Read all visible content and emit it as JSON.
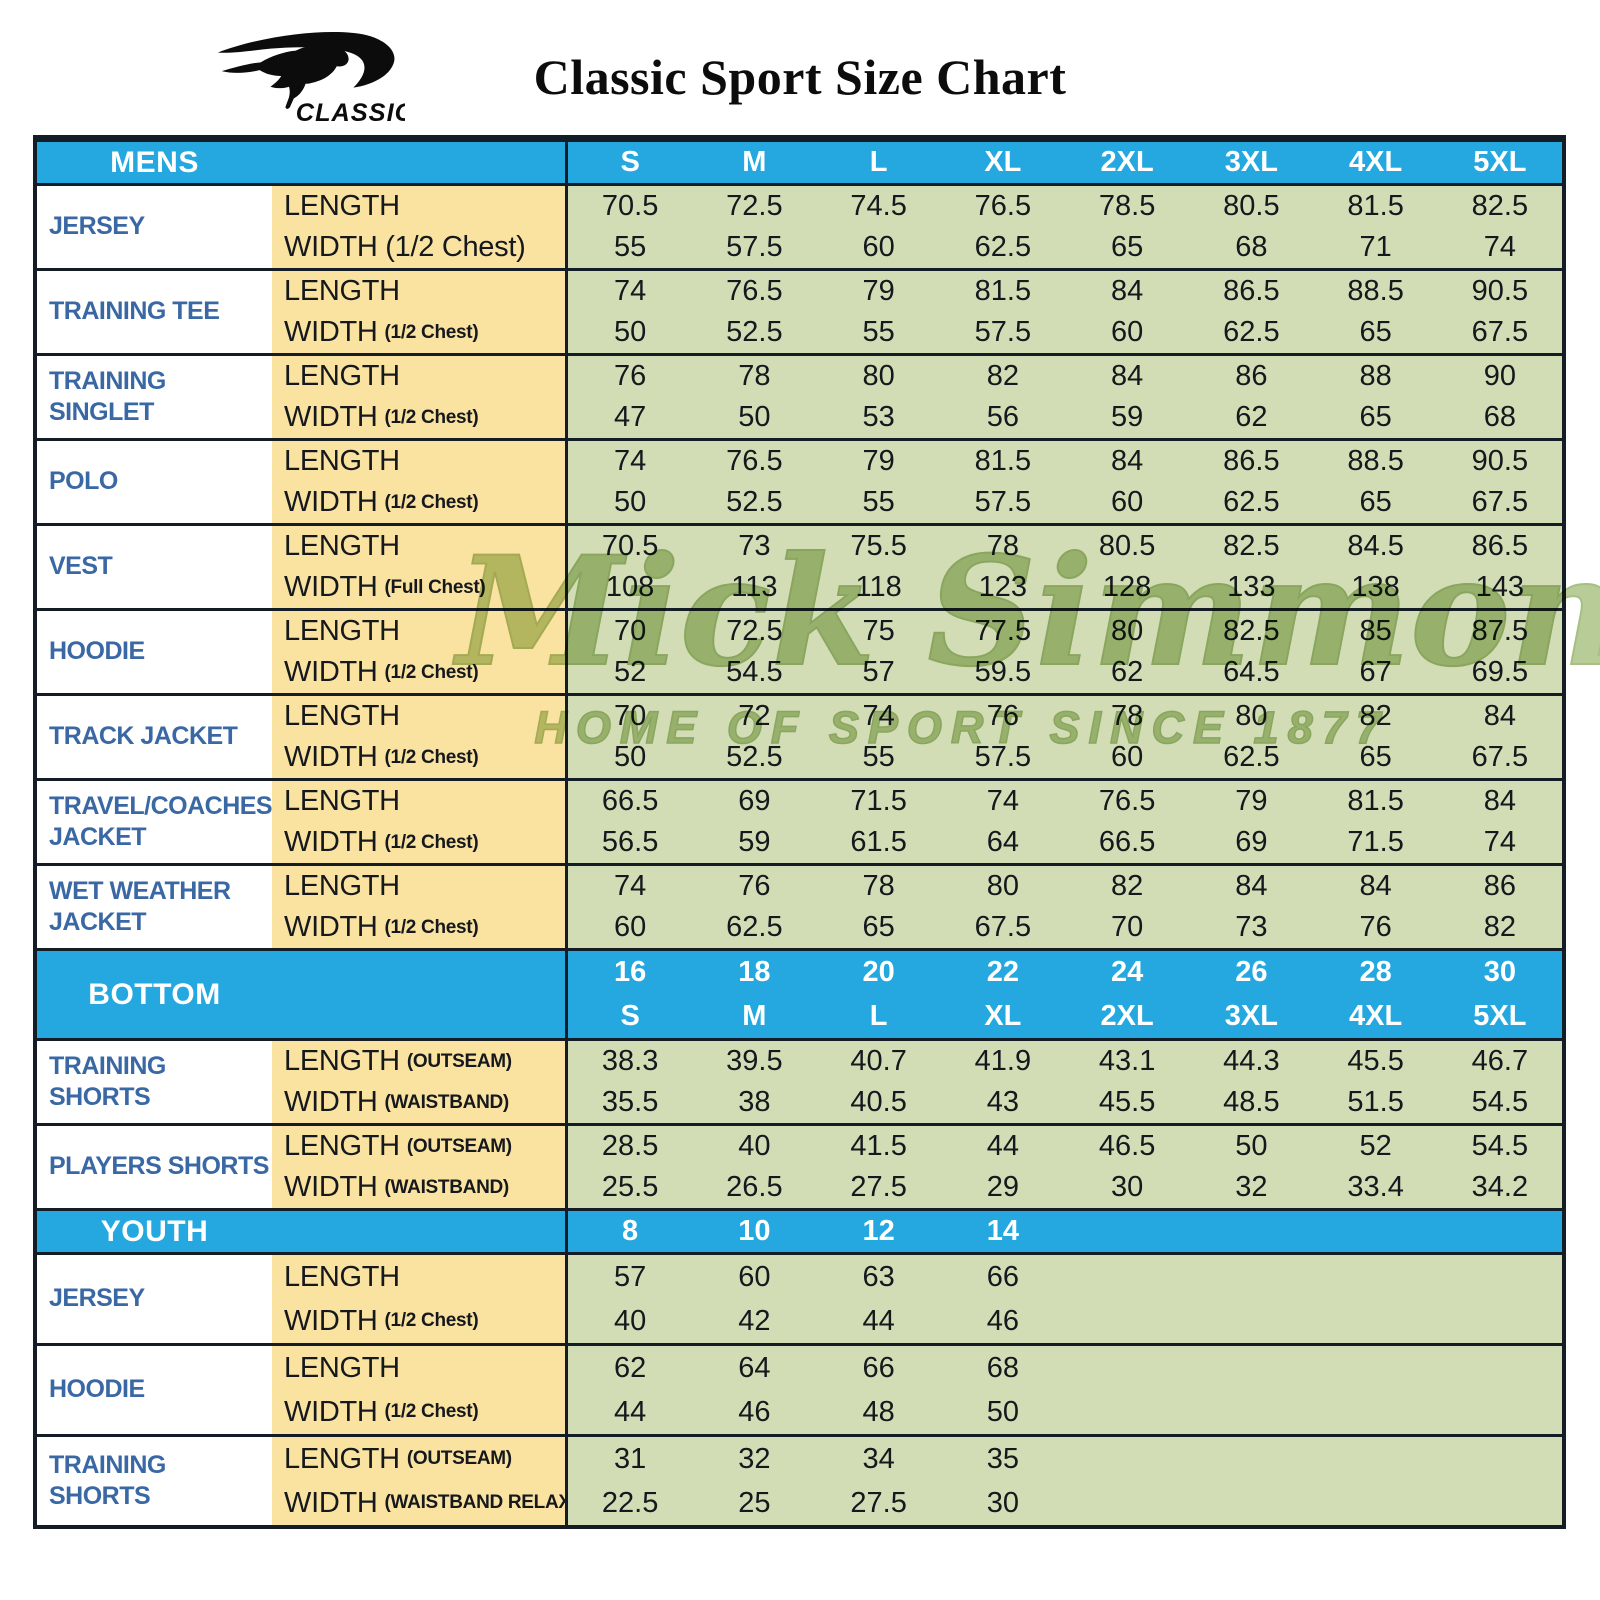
{
  "brand": {
    "logo_text": "CLASSIC"
  },
  "title": "Classic Sport Size Chart",
  "watermark": {
    "script": "Mick Simmons",
    "reg": "®",
    "tagline": "HOME OF SPORT SINCE 1877"
  },
  "colors": {
    "header_bg": "#25A8E0",
    "label_text": "#3A68A4",
    "measure_bg": "#FAE3A0",
    "data_bg": "#D2DDB6",
    "border": "#141C26",
    "watermark_fill": "#AFC78C",
    "watermark_stroke": "#9CB876"
  },
  "sections": [
    {
      "kind": "sizes-header",
      "label": "MENS",
      "sizes": [
        "S",
        "M",
        "L",
        "XL",
        "2XL",
        "3XL",
        "4XL",
        "5XL"
      ]
    },
    {
      "kind": "product",
      "label": "JERSEY",
      "m1": "LENGTH",
      "m1note": "",
      "v1": [
        "70.5",
        "72.5",
        "74.5",
        "76.5",
        "78.5",
        "80.5",
        "81.5",
        "82.5"
      ],
      "m2": "WIDTH (1/2 Chest)",
      "m2note": "",
      "v2": [
        "55",
        "57.5",
        "60",
        "62.5",
        "65",
        "68",
        "71",
        "74"
      ]
    },
    {
      "kind": "product",
      "label": "TRAINING TEE",
      "m1": "LENGTH",
      "m1note": "",
      "v1": [
        "74",
        "76.5",
        "79",
        "81.5",
        "84",
        "86.5",
        "88.5",
        "90.5"
      ],
      "m2": "WIDTH",
      "m2note": "(1/2 Chest)",
      "v2": [
        "50",
        "52.5",
        "55",
        "57.5",
        "60",
        "62.5",
        "65",
        "67.5"
      ]
    },
    {
      "kind": "product",
      "label": "TRAINING SINGLET",
      "m1": "LENGTH",
      "m1note": "",
      "v1": [
        "76",
        "78",
        "80",
        "82",
        "84",
        "86",
        "88",
        "90"
      ],
      "m2": "WIDTH",
      "m2note": "(1/2 Chest)",
      "v2": [
        "47",
        "50",
        "53",
        "56",
        "59",
        "62",
        "65",
        "68"
      ]
    },
    {
      "kind": "product",
      "label": "POLO",
      "m1": "LENGTH",
      "m1note": "",
      "v1": [
        "74",
        "76.5",
        "79",
        "81.5",
        "84",
        "86.5",
        "88.5",
        "90.5"
      ],
      "m2": "WIDTH",
      "m2note": "(1/2 Chest)",
      "v2": [
        "50",
        "52.5",
        "55",
        "57.5",
        "60",
        "62.5",
        "65",
        "67.5"
      ]
    },
    {
      "kind": "product",
      "label": "VEST",
      "m1": "LENGTH",
      "m1note": "",
      "v1": [
        "70.5",
        "73",
        "75.5",
        "78",
        "80.5",
        "82.5",
        "84.5",
        "86.5"
      ],
      "m2": "WIDTH",
      "m2note": "(Full Chest)",
      "v2": [
        "108",
        "113",
        "118",
        "123",
        "128",
        "133",
        "138",
        "143"
      ]
    },
    {
      "kind": "product",
      "label": "HOODIE",
      "m1": "LENGTH",
      "m1note": "",
      "v1": [
        "70",
        "72.5",
        "75",
        "77.5",
        "80",
        "82.5",
        "85",
        "87.5"
      ],
      "m2": "WIDTH",
      "m2note": "(1/2 Chest)",
      "v2": [
        "52",
        "54.5",
        "57",
        "59.5",
        "62",
        "64.5",
        "67",
        "69.5"
      ]
    },
    {
      "kind": "product",
      "label": "TRACK JACKET",
      "m1": "LENGTH",
      "m1note": "",
      "v1": [
        "70",
        "72",
        "74",
        "76",
        "78",
        "80",
        "82",
        "84"
      ],
      "m2": "WIDTH",
      "m2note": "(1/2 Chest)",
      "v2": [
        "50",
        "52.5",
        "55",
        "57.5",
        "60",
        "62.5",
        "65",
        "67.5"
      ]
    },
    {
      "kind": "product",
      "label": "TRAVEL/COACHES JACKET",
      "m1": "LENGTH",
      "m1note": "",
      "v1": [
        "66.5",
        "69",
        "71.5",
        "74",
        "76.5",
        "79",
        "81.5",
        "84"
      ],
      "m2": "WIDTH",
      "m2note": "(1/2 Chest)",
      "v2": [
        "56.5",
        "59",
        "61.5",
        "64",
        "66.5",
        "69",
        "71.5",
        "74"
      ]
    },
    {
      "kind": "product",
      "label": "WET WEATHER JACKET",
      "m1": "LENGTH",
      "m1note": "",
      "v1": [
        "74",
        "76",
        "78",
        "80",
        "82",
        "84",
        "84",
        "86"
      ],
      "m2": "WIDTH",
      "m2note": "(1/2 Chest)",
      "v2": [
        "60",
        "62.5",
        "65",
        "67.5",
        "70",
        "73",
        "76",
        "82"
      ]
    },
    {
      "kind": "double-header",
      "label": "BOTTOM",
      "sizes_top": [
        "16",
        "18",
        "20",
        "22",
        "24",
        "26",
        "28",
        "30"
      ],
      "sizes_bottom": [
        "S",
        "M",
        "L",
        "XL",
        "2XL",
        "3XL",
        "4XL",
        "5XL"
      ]
    },
    {
      "kind": "product",
      "label": "TRAINING SHORTS",
      "m1": "LENGTH",
      "m1note": "(OUTSEAM)",
      "v1": [
        "38.3",
        "39.5",
        "40.7",
        "41.9",
        "43.1",
        "44.3",
        "45.5",
        "46.7"
      ],
      "m2": "WIDTH",
      "m2note": "(WAISTBAND)",
      "v2": [
        "35.5",
        "38",
        "40.5",
        "43",
        "45.5",
        "48.5",
        "51.5",
        "54.5"
      ]
    },
    {
      "kind": "product",
      "label": "PLAYERS SHORTS",
      "m1": "LENGTH",
      "m1note": "(OUTSEAM)",
      "v1": [
        "28.5",
        "40",
        "41.5",
        "44",
        "46.5",
        "50",
        "52",
        "54.5"
      ],
      "m2": "WIDTH",
      "m2note": "(WAISTBAND)",
      "v2": [
        "25.5",
        "26.5",
        "27.5",
        "29",
        "30",
        "32",
        "33.4",
        "34.2"
      ]
    },
    {
      "kind": "sizes-header",
      "label": "YOUTH",
      "sizes": [
        "8",
        "10",
        "12",
        "14",
        "",
        "",
        "",
        ""
      ]
    },
    {
      "kind": "product",
      "youth": true,
      "label": "JERSEY",
      "m1": "LENGTH",
      "m1note": "",
      "v1": [
        "57",
        "60",
        "63",
        "66",
        "",
        "",
        "",
        ""
      ],
      "m2": "WIDTH",
      "m2note": "(1/2 Chest)",
      "v2": [
        "40",
        "42",
        "44",
        "46",
        "",
        "",
        "",
        ""
      ]
    },
    {
      "kind": "product",
      "youth": true,
      "label": "HOODIE",
      "m1": "LENGTH",
      "m1note": "",
      "v1": [
        "62",
        "64",
        "66",
        "68",
        "",
        "",
        "",
        ""
      ],
      "m2": "WIDTH",
      "m2note": "(1/2 Chest)",
      "v2": [
        "44",
        "46",
        "48",
        "50",
        "",
        "",
        "",
        ""
      ]
    },
    {
      "kind": "product",
      "youth": true,
      "label": "TRAINING SHORTS",
      "m1": "LENGTH",
      "m1note": "(OUTSEAM)",
      "v1": [
        "31",
        "32",
        "34",
        "35",
        "",
        "",
        "",
        ""
      ],
      "m2": "WIDTH",
      "m2note": "(WAISTBAND RELAX)",
      "v2": [
        "22.5",
        "25",
        "27.5",
        "30",
        "",
        "",
        "",
        ""
      ]
    }
  ]
}
